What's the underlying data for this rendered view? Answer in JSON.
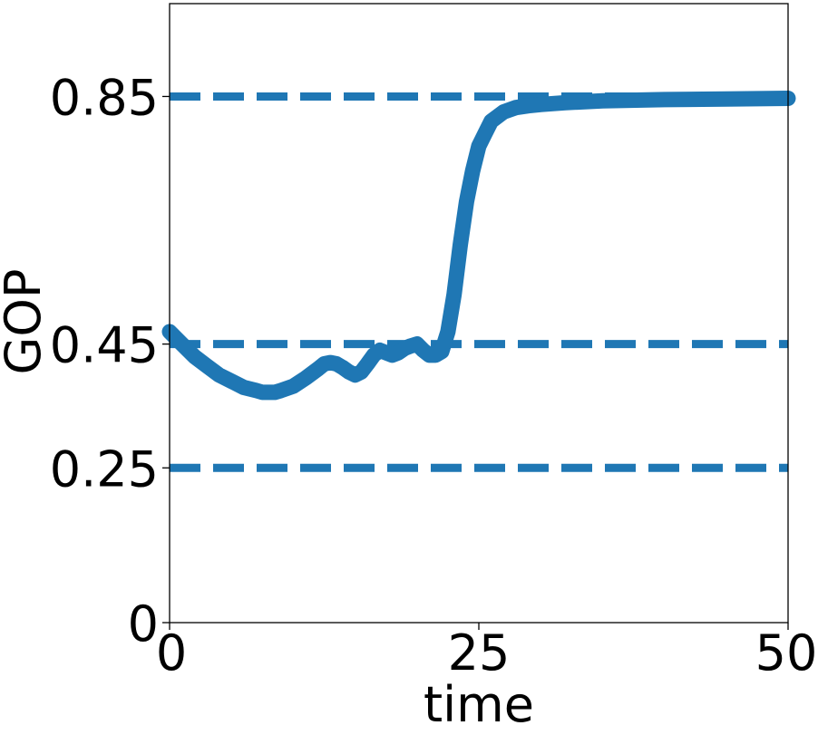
{
  "chart_data": {
    "type": "line",
    "title": "",
    "xlabel": "time",
    "ylabel": "GOP",
    "xlim": [
      0,
      50
    ],
    "ylim": [
      0,
      1.0
    ],
    "x_ticks": [
      0,
      25,
      50
    ],
    "x_tick_labels": [
      "0",
      "25",
      "50"
    ],
    "y_ticks": [
      0,
      0.25,
      0.45,
      0.85
    ],
    "y_tick_labels": [
      "0",
      "0.25",
      "0.45",
      "0.85"
    ],
    "grid": false,
    "legend": "none",
    "color": "#1f77b4",
    "reference_lines": [
      {
        "orientation": "horizontal",
        "y": 0.85,
        "style": "dashed"
      },
      {
        "orientation": "horizontal",
        "y": 0.45,
        "style": "dashed"
      },
      {
        "orientation": "horizontal",
        "y": 0.25,
        "style": "dashed"
      }
    ],
    "series": [
      {
        "x": [
          0,
          1,
          2,
          3,
          4,
          5,
          6,
          7,
          7.5,
          8,
          8.5,
          9,
          10,
          11,
          12,
          12.5,
          13,
          13.5,
          14,
          14.5,
          15,
          15.5,
          16,
          16.5,
          17,
          17.5,
          18,
          18.5,
          19,
          19.5,
          20,
          20.5,
          21,
          21.5,
          22,
          22.5,
          23,
          23.5,
          24,
          24.5,
          25,
          25.5,
          26,
          27,
          28,
          29,
          30,
          32,
          35,
          40,
          45,
          50
        ],
        "y": [
          0.47,
          0.45,
          0.43,
          0.415,
          0.4,
          0.39,
          0.38,
          0.375,
          0.372,
          0.372,
          0.372,
          0.375,
          0.382,
          0.395,
          0.41,
          0.418,
          0.42,
          0.418,
          0.412,
          0.405,
          0.4,
          0.405,
          0.418,
          0.432,
          0.44,
          0.436,
          0.432,
          0.436,
          0.443,
          0.447,
          0.45,
          0.44,
          0.432,
          0.432,
          0.438,
          0.47,
          0.53,
          0.61,
          0.68,
          0.73,
          0.77,
          0.79,
          0.81,
          0.825,
          0.832,
          0.835,
          0.837,
          0.84,
          0.843,
          0.845,
          0.846,
          0.847
        ]
      }
    ]
  }
}
